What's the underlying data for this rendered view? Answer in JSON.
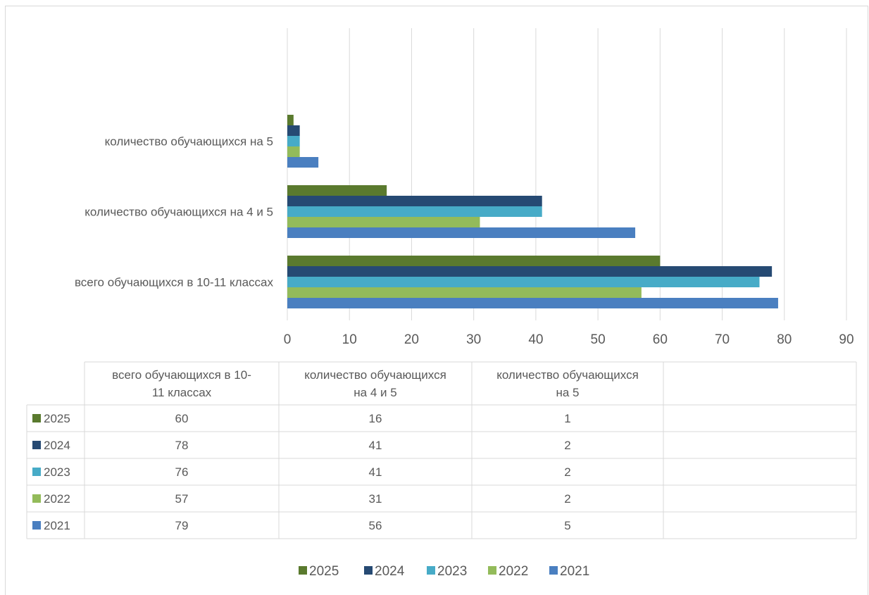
{
  "chart_data": {
    "type": "bar",
    "orientation": "horizontal",
    "categories": [
      "всего обучающихся в 10-11 классах",
      "количество обучающихся на 4 и 5",
      "количество обучающихся на 5"
    ],
    "table_headers": [
      [
        "всего обучающихся в 10-",
        "11 классах"
      ],
      [
        "количество обучающихся",
        "на 4 и 5"
      ],
      [
        "количество обучающихся",
        "на 5"
      ]
    ],
    "series": [
      {
        "name": "2025",
        "color": "#5a7a2e",
        "values": [
          60,
          16,
          1
        ]
      },
      {
        "name": "2024",
        "color": "#264a73",
        "values": [
          78,
          41,
          2
        ]
      },
      {
        "name": "2023",
        "color": "#47abc7",
        "values": [
          76,
          41,
          2
        ]
      },
      {
        "name": "2022",
        "color": "#93bb5a",
        "values": [
          57,
          31,
          2
        ]
      },
      {
        "name": "2021",
        "color": "#4a7fc0",
        "values": [
          79,
          56,
          5
        ]
      }
    ],
    "xlim": [
      0,
      90
    ],
    "xticks": [
      "0",
      "10",
      "20",
      "30",
      "40",
      "50",
      "60",
      "70",
      "80",
      "90"
    ],
    "grid": true,
    "legend": "bottom",
    "data_table": true
  }
}
